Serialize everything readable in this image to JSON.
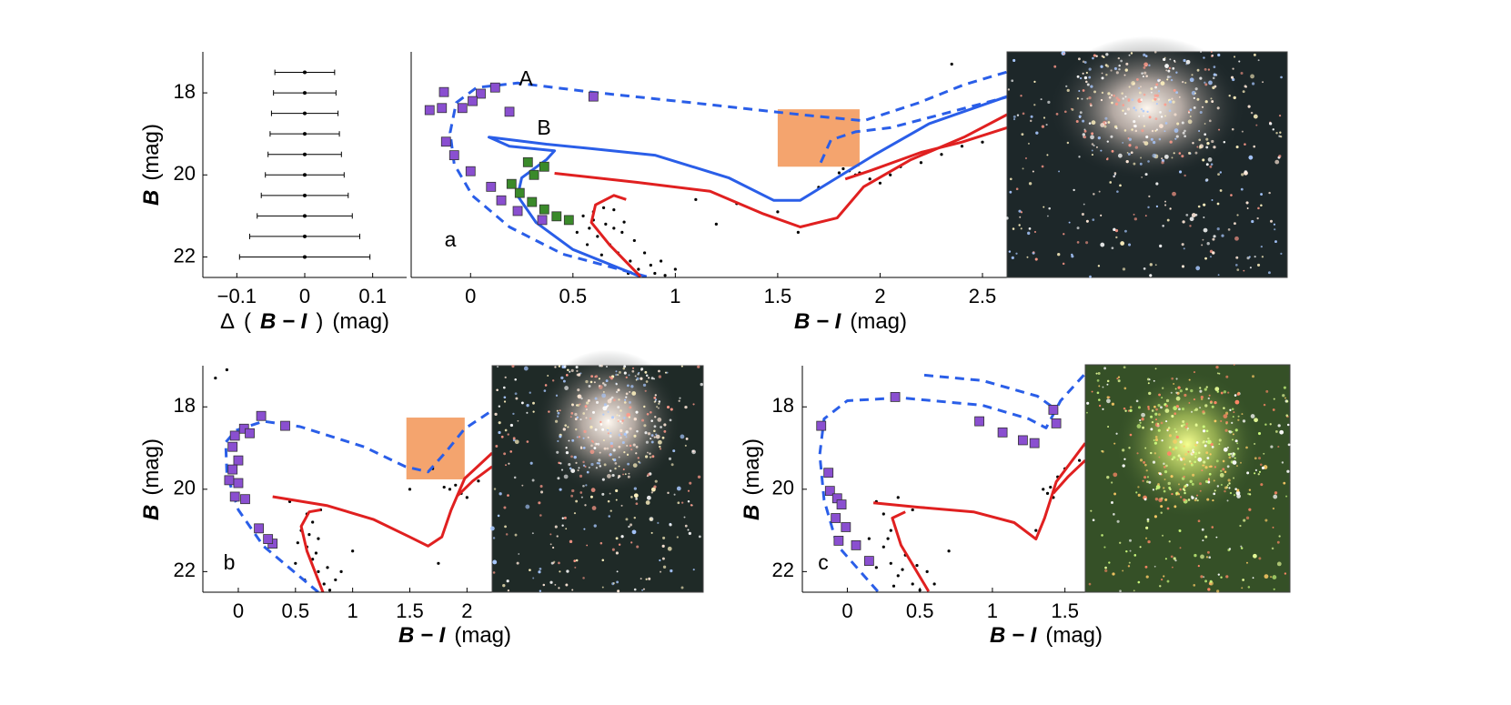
{
  "chart_data": [
    {
      "type": "errorbar",
      "xlabel": [
        {
          "text": "Δ"
        },
        {
          "text": "("
        },
        {
          "text": "B − I",
          "italic": true
        },
        {
          "text": ")"
        },
        {
          "text": "(mag)"
        }
      ],
      "ylabel": [
        {
          "text": "B",
          "italic": true
        },
        {
          "text": "(mag)"
        }
      ],
      "xlim": [
        -0.15,
        0.15
      ],
      "xticks": [
        {
          "value": -0.1,
          "label": "−0.1"
        },
        0,
        0.1
      ],
      "ylim": [
        22.5,
        17
      ],
      "yticks": [
        18,
        20,
        22
      ],
      "color": "#000000",
      "y": [
        17.5,
        18,
        18.5,
        19,
        19.5,
        20,
        20.5,
        21,
        21.5,
        22
      ],
      "values": [
        0,
        0,
        0,
        0,
        0,
        0,
        0,
        0,
        0,
        0
      ],
      "errors": [
        0.044,
        0.046,
        0.049,
        0.051,
        0.054,
        0.058,
        0.064,
        0.07,
        0.081,
        0.096
      ]
    },
    {
      "type": "scatter",
      "panel_label": "a",
      "xlabel": [
        {
          "text": "B − I",
          "italic": true
        },
        {
          "text": "(mag)"
        }
      ],
      "xlim": [
        -0.29,
        2.62
      ],
      "xticks": [
        0,
        0.5,
        1,
        1.5,
        2,
        2.5
      ],
      "ylim": [
        22.5,
        17
      ],
      "highlight": {
        "x": [
          1.5,
          1.9
        ],
        "y": [
          18.4,
          19.8
        ],
        "color": "#f4a46e"
      },
      "series": [
        {
          "name": "A",
          "style": "dashed",
          "color": "#2a5ee8",
          "x": [
            0.86,
            0.45,
            0.19,
            0.01,
            -0.08,
            -0.1,
            -0.07,
            0.03,
            0.23,
            0.59,
            1.08,
            1.61,
            1.92,
            2.19,
            2.41,
            2.62
          ],
          "values": [
            22.48,
            21.93,
            21.27,
            20.51,
            19.74,
            18.97,
            18.24,
            17.87,
            17.76,
            17.98,
            18.24,
            18.53,
            18.68,
            18.24,
            17.8,
            17.49
          ]
        },
        {
          "style": "dashed",
          "color": "#2a5ee8",
          "x": [
            1.71,
            1.76,
            1.88,
            2.05,
            2.28,
            2.62
          ],
          "values": [
            19.7,
            19.15,
            18.95,
            18.85,
            18.55,
            18.1
          ]
        },
        {
          "name": "B",
          "style": "solid",
          "color": "#2a5ee8",
          "x": [
            0.83,
            0.5,
            0.32,
            0.23,
            0.25,
            0.37,
            0.41,
            0.19,
            0.09,
            0.37,
            0.59,
            0.9,
            1.26,
            1.48,
            1.61,
            1.79,
            1.97,
            2.24,
            2.62
          ],
          "values": [
            22.48,
            21.82,
            21.16,
            20.51,
            20.07,
            19.63,
            19.41,
            19.3,
            19.08,
            19.25,
            19.36,
            19.52,
            20.07,
            20.62,
            20.62,
            20.07,
            19.52,
            18.75,
            18.09
          ]
        },
        {
          "style": "solid",
          "color": "#e02020",
          "x": [
            0.83,
            0.68,
            0.59,
            0.61,
            0.7,
            0.76,
            null,
            0.41,
            0.81,
            1.17,
            1.43,
            1.61,
            1.79,
            1.92,
            2.15,
            2.41,
            2.62
          ],
          "values": [
            22.48,
            21.71,
            21.16,
            20.73,
            20.5,
            20.6,
            null,
            19.96,
            20.18,
            20.4,
            20.95,
            21.27,
            21.05,
            20.29,
            19.63,
            19.08,
            18.53
          ]
        },
        {
          "style": "solid",
          "color": "#e02020",
          "x": [
            1.83,
            1.95,
            2.2,
            2.4,
            2.62
          ],
          "values": [
            20.1,
            19.9,
            19.45,
            19.2,
            18.85
          ]
        },
        {
          "style": "square",
          "color": "#8a4fd0",
          "x": [
            -0.13,
            0.12,
            0.05,
            0.01,
            -0.2,
            -0.14,
            -0.04,
            0.19,
            0.6,
            -0.12,
            -0.08,
            0.0,
            0.1,
            0.15,
            0.23,
            0.35
          ],
          "values": [
            17.98,
            17.87,
            18.02,
            18.2,
            18.42,
            18.37,
            18.37,
            18.46,
            18.09,
            19.19,
            19.52,
            19.91,
            20.29,
            20.62,
            20.88,
            21.1
          ]
        },
        {
          "style": "square",
          "color": "#3a8a2a",
          "x": [
            0.28,
            0.36,
            0.31,
            0.2,
            0.24,
            0.3,
            0.36,
            0.42,
            0.48
          ],
          "values": [
            19.69,
            19.8,
            20.0,
            20.22,
            20.44,
            20.66,
            20.84,
            21.01,
            21.1
          ]
        },
        {
          "style": "dot",
          "color": "#000000",
          "x": [
            0.55,
            0.6,
            0.65,
            0.7,
            0.58,
            0.62,
            0.68,
            0.72,
            0.78,
            0.82,
            0.9,
            0.95,
            0.66,
            0.74,
            0.8,
            0.85,
            0.6,
            0.7,
            0.75,
            0.88,
            1.0,
            0.52,
            0.57,
            0.64,
            0.71,
            0.77,
            0.93,
            1.1,
            1.3,
            1.5,
            1.7,
            1.8,
            1.85,
            1.88,
            1.82,
            1.9,
            1.95,
            2.0,
            2.05,
            2.1,
            2.2,
            2.3,
            2.4,
            2.5,
            1.6,
            1.2,
            2.35
          ],
          "values": [
            21.0,
            20.9,
            20.8,
            20.85,
            21.3,
            21.5,
            21.7,
            21.9,
            22.1,
            22.3,
            22.4,
            22.45,
            21.2,
            21.4,
            21.6,
            21.9,
            21.1,
            21.3,
            21.15,
            22.2,
            22.3,
            21.4,
            21.7,
            21.95,
            22.25,
            22.4,
            22.1,
            20.6,
            20.7,
            20.9,
            20.3,
            19.95,
            19.9,
            20.0,
            19.85,
            19.95,
            20.1,
            20.2,
            20.0,
            19.8,
            19.7,
            19.5,
            19.3,
            19.2,
            21.4,
            21.2,
            17.3
          ]
        }
      ]
    },
    {
      "type": "scatter",
      "panel_label": "b",
      "xlabel": [
        {
          "text": "B − I",
          "italic": true
        },
        {
          "text": "(mag)"
        }
      ],
      "ylabel": [
        {
          "text": "B",
          "italic": true
        },
        {
          "text": "(mag)"
        }
      ],
      "xlim": [
        -0.31,
        2.22
      ],
      "xticks": [
        0,
        0.5,
        1,
        1.5,
        2
      ],
      "ylim": [
        22.5,
        17
      ],
      "yticks": [
        18,
        20,
        22
      ],
      "highlight": {
        "x": [
          1.47,
          1.98
        ],
        "y": [
          18.26,
          19.76
        ],
        "color": "#f4a46e"
      },
      "series": [
        {
          "style": "dashed",
          "color": "#2a5ee8",
          "x": [
            0.7,
            0.22,
            0.0,
            -0.1,
            -0.11,
            -0.02,
            0.22,
            0.54,
            1.1,
            1.46,
            1.66,
            1.82,
            1.98,
            2.22
          ],
          "values": [
            22.5,
            21.38,
            20.5,
            19.63,
            18.86,
            18.57,
            18.35,
            18.48,
            18.97,
            19.45,
            19.58,
            19.08,
            18.53,
            18.09
          ]
        },
        {
          "style": "solid",
          "color": "#e02020",
          "x": [
            0.74,
            0.6,
            0.55,
            0.62,
            0.72,
            null,
            0.3,
            0.78,
            1.18,
            1.5,
            1.66,
            1.78,
            1.86,
            1.98,
            2.22
          ],
          "values": [
            22.5,
            21.5,
            20.9,
            20.55,
            20.5,
            null,
            20.18,
            20.4,
            20.73,
            21.16,
            21.38,
            21.16,
            20.51,
            19.74,
            19.12
          ]
        },
        {
          "style": "solid",
          "color": "#e02020",
          "x": [
            1.92,
            2.05,
            2.22
          ],
          "values": [
            20.15,
            19.8,
            19.45
          ]
        },
        {
          "style": "square",
          "color": "#8a4fd0",
          "x": [
            0.2,
            0.41,
            -0.03,
            0.05,
            0.1,
            -0.05,
            0.0,
            -0.05,
            -0.08,
            0.0,
            -0.03,
            0.06,
            0.18,
            0.3,
            0.26
          ],
          "values": [
            18.22,
            18.46,
            18.7,
            18.53,
            18.64,
            18.97,
            19.3,
            19.52,
            19.78,
            19.85,
            20.18,
            20.24,
            20.95,
            21.32,
            21.21
          ]
        },
        {
          "style": "dot",
          "color": "#000000",
          "x": [
            0.6,
            0.65,
            0.55,
            0.6,
            0.65,
            0.7,
            0.75,
            0.8,
            0.5,
            0.58,
            0.7,
            0.72,
            0.85,
            0.9,
            1.0,
            0.45,
            0.62,
            0.68,
            0.78,
            0.52,
            1.85,
            1.9,
            1.8,
            1.95,
            2.0,
            2.1,
            1.7,
            1.75,
            1.5,
            -0.2,
            -0.1
          ],
          "values": [
            20.6,
            20.8,
            21.0,
            21.4,
            21.7,
            22.0,
            22.3,
            22.45,
            21.8,
            22.2,
            21.2,
            20.5,
            22.2,
            22.0,
            21.5,
            20.3,
            21.1,
            21.55,
            21.9,
            21.3,
            20.0,
            19.9,
            19.95,
            20.1,
            20.2,
            19.8,
            19.5,
            21.8,
            20.0,
            17.3,
            17.1
          ]
        }
      ]
    },
    {
      "type": "scatter",
      "panel_label": "c",
      "xlabel": [
        {
          "text": "B − I",
          "italic": true
        },
        {
          "text": "(mag)"
        }
      ],
      "ylabel": [
        {
          "text": "B",
          "italic": true
        },
        {
          "text": "(mag)"
        }
      ],
      "xlim": [
        -0.31,
        1.64
      ],
      "xticks": [
        0,
        0.5,
        1,
        1.5
      ],
      "ylim": [
        22.5,
        17
      ],
      "yticks": [
        18,
        20,
        22
      ],
      "series": [
        {
          "style": "dashed",
          "color": "#2a5ee8",
          "x": [
            0.21,
            -0.07,
            -0.16,
            -0.19,
            -0.16,
            0.0,
            0.37,
            0.93,
            1.25,
            1.37,
            1.47,
            1.64
          ],
          "values": [
            22.48,
            21.36,
            20.26,
            19.16,
            18.29,
            17.85,
            17.78,
            17.96,
            18.29,
            18.51,
            17.85,
            17.19
          ]
        },
        {
          "style": "dashed",
          "color": "#2a5ee8",
          "x": [
            0.53,
            0.93,
            1.31,
            1.44
          ],
          "values": [
            17.23,
            17.36,
            17.74,
            18.07
          ]
        },
        {
          "style": "solid",
          "color": "#e02020",
          "x": [
            0.56,
            0.37,
            0.31,
            0.4,
            null,
            0.18,
            0.5,
            0.87,
            1.15,
            1.3,
            1.36,
            1.44,
            1.64
          ],
          "values": [
            22.48,
            21.36,
            20.7,
            20.55,
            null,
            20.33,
            20.44,
            20.55,
            20.81,
            21.21,
            20.7,
            19.82,
            18.88
          ]
        },
        {
          "style": "solid",
          "color": "#e02020",
          "x": [
            1.42,
            1.52,
            1.64
          ],
          "values": [
            20.1,
            19.7,
            19.3
          ]
        },
        {
          "style": "square",
          "color": "#8a4fd0",
          "x": [
            0.33,
            0.91,
            1.07,
            1.21,
            1.29,
            1.42,
            1.44,
            -0.18,
            -0.13,
            -0.12,
            -0.07,
            -0.04,
            -0.08,
            -0.01,
            -0.06,
            0.06,
            0.15
          ],
          "values": [
            17.76,
            18.35,
            18.62,
            18.81,
            18.88,
            18.07,
            18.4,
            18.46,
            19.6,
            20.04,
            20.22,
            20.37,
            20.7,
            20.92,
            21.25,
            21.36,
            21.74
          ]
        },
        {
          "style": "dot",
          "color": "#000000",
          "x": [
            0.2,
            0.25,
            0.3,
            0.25,
            0.3,
            0.35,
            0.45,
            0.5,
            0.15,
            0.4,
            0.55,
            0.6,
            0.2,
            0.45,
            0.35,
            0.28,
            0.38,
            0.32,
            0.48,
            1.35,
            1.4,
            1.38,
            1.42,
            1.45,
            1.5,
            1.3,
            1.6,
            0.7
          ],
          "values": [
            20.3,
            20.6,
            21.0,
            21.4,
            21.8,
            22.1,
            22.3,
            22.45,
            21.2,
            21.6,
            22.0,
            22.3,
            21.9,
            20.5,
            20.2,
            21.2,
            21.95,
            22.35,
            21.85,
            20.0,
            19.95,
            20.1,
            20.2,
            19.7,
            19.5,
            21.0,
            19.3,
            21.5
          ]
        }
      ]
    }
  ]
}
